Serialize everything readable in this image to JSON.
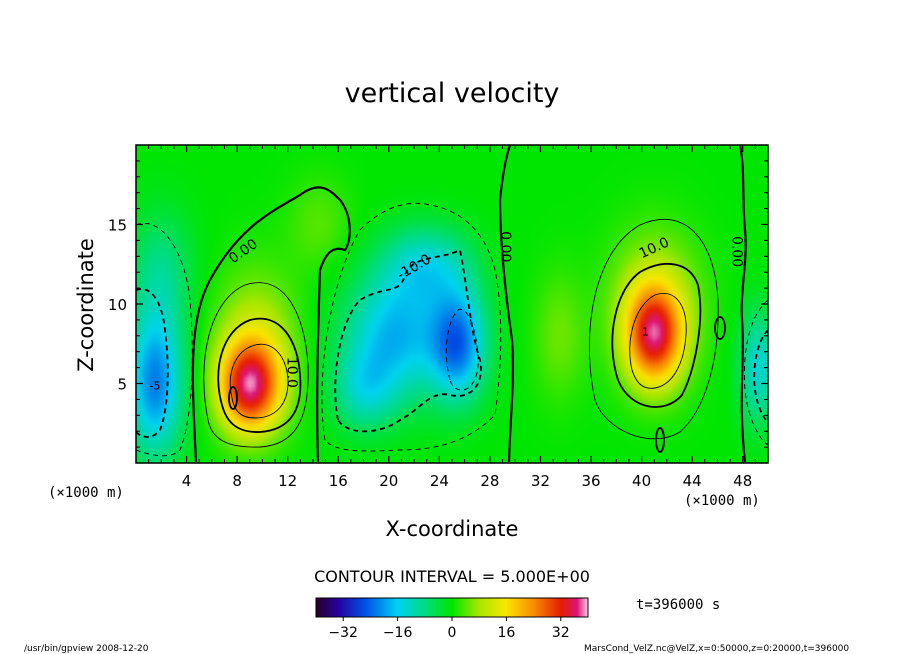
{
  "chart_data": {
    "type": "heatmap",
    "title": "vertical velocity",
    "xlabel": "X-coordinate",
    "ylabel": "Z-coordinate",
    "x_unit_left": "(×1000 m)",
    "x_unit_right": "(×1000 m)",
    "xlim": [
      0,
      50
    ],
    "ylim": [
      0,
      20
    ],
    "x_ticks": [
      4,
      8,
      12,
      16,
      20,
      24,
      28,
      32,
      36,
      40,
      44,
      48
    ],
    "y_ticks": [
      5,
      10,
      15
    ],
    "contour_interval_text": "CONTOUR INTERVAL = 5.000E+00",
    "time_text": "t=396000 s",
    "colorbar_ticks": [
      -32,
      -16,
      0,
      16,
      32
    ],
    "colorbar_range": [
      -40,
      40
    ],
    "contour_labels": [
      {
        "text": "0.00",
        "x": 8.5,
        "y": 13.3,
        "angle": -35
      },
      {
        "text": "10.0",
        "x": 12.3,
        "y": 5.7,
        "angle": 90
      },
      {
        "text": "-10.0",
        "x": 22.0,
        "y": 12.3,
        "angle": -30
      },
      {
        "text": "0.00",
        "x": 29.2,
        "y": 13.6,
        "angle": 90
      },
      {
        "text": "10.0",
        "x": 41.0,
        "y": 13.5,
        "angle": -25
      },
      {
        "text": "0.00",
        "x": 47.5,
        "y": 13.3,
        "angle": 90
      }
    ],
    "extrema_labels": [
      {
        "text": "-5",
        "x": 1.5,
        "y": 4.8
      },
      {
        "text": "1",
        "x": 40.3,
        "y": 8.2
      }
    ],
    "cells": [
      {
        "x": 1.5,
        "y": 5.0,
        "sx": 2.2,
        "sy": 4.5,
        "v": -22
      },
      {
        "x": 2.0,
        "y": 12.0,
        "sx": 2.5,
        "sy": 4.0,
        "v": -8
      },
      {
        "x": 9.0,
        "y": 4.8,
        "sx": 2.4,
        "sy": 2.8,
        "v": 32
      },
      {
        "x": 9.5,
        "y": 7.5,
        "sx": 3.2,
        "sy": 4.5,
        "v": 10
      },
      {
        "x": 20.5,
        "y": 8.0,
        "sx": 4.0,
        "sy": 4.0,
        "v": -18
      },
      {
        "x": 25.5,
        "y": 7.5,
        "sx": 2.2,
        "sy": 3.5,
        "v": -22
      },
      {
        "x": 23.0,
        "y": 12.5,
        "sx": 3.5,
        "sy": 2.5,
        "v": -12
      },
      {
        "x": 18.0,
        "y": 4.5,
        "sx": 2.5,
        "sy": 2.5,
        "v": -10
      },
      {
        "x": 41.0,
        "y": 8.0,
        "sx": 2.2,
        "sy": 3.0,
        "v": 30
      },
      {
        "x": 41.0,
        "y": 10.0,
        "sx": 3.5,
        "sy": 4.5,
        "v": 10
      },
      {
        "x": 49.2,
        "y": 6.0,
        "sx": 1.5,
        "sy": 3.5,
        "v": -14
      },
      {
        "x": 14.5,
        "y": 15.0,
        "sx": 2.5,
        "sy": 3.0,
        "v": 4
      },
      {
        "x": 33.5,
        "y": 8.0,
        "sx": 2.0,
        "sy": 4.0,
        "v": 5
      }
    ]
  },
  "footer": {
    "left_text": "/usr/bin/gpview   2008-12-20",
    "right_text": "MarsCond_VelZ.nc@VelZ,x=0:50000,z=0:20000,t=396000"
  }
}
